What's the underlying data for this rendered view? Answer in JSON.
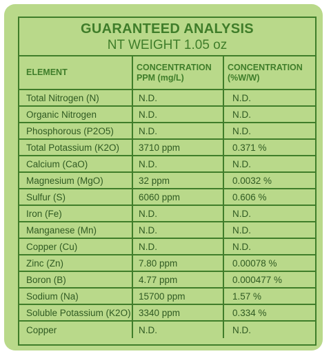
{
  "header": {
    "title": "GUARANTEED ANALYSIS",
    "subtitle": "NT WEIGHT 1.05 oz"
  },
  "columns": {
    "element": "ELEMENT",
    "ppm_line1": "CONCENTRATION",
    "ppm_line2": "PPM (mg/L)",
    "pct_line1": "CONCENTRATION",
    "pct_line2": "(%W/W)"
  },
  "rows": [
    {
      "element": "Total Nitrogen (N)",
      "ppm": "N.D.",
      "pct": "N.D."
    },
    {
      "element": "Organic Nitrogen",
      "ppm": "N.D.",
      "pct": "N.D."
    },
    {
      "element": "Phosphorous (P2O5)",
      "ppm": "N.D.",
      "pct": "N.D."
    },
    {
      "element": "Total Potassium (K2O)",
      "ppm": "3710 ppm",
      "pct": "0.371 %"
    },
    {
      "element": "Calcium (CaO)",
      "ppm": "N.D.",
      "pct": "N.D."
    },
    {
      "element": "Magnesium (MgO)",
      "ppm": "32 ppm",
      "pct": "0.0032 %"
    },
    {
      "element": "Sulfur (S)",
      "ppm": "6060 ppm",
      "pct": "0.606 %"
    },
    {
      "element": "Iron (Fe)",
      "ppm": "N.D.",
      "pct": "N.D."
    },
    {
      "element": "Manganese (Mn)",
      "ppm": "N.D.",
      "pct": "N.D."
    },
    {
      "element": "Copper (Cu)",
      "ppm": "N.D.",
      "pct": "N.D."
    },
    {
      "element": "Zinc (Zn)",
      "ppm": "7.80 ppm",
      "pct": "0.00078 %"
    },
    {
      "element": "Boron (B)",
      "ppm": "4.77 ppm",
      "pct": "0.000477 %"
    },
    {
      "element": "Sodium (Na)",
      "ppm": "15700 ppm",
      "pct": "1.57 %"
    },
    {
      "element": "Soluble Potassium (K2O)",
      "ppm": "3340 ppm",
      "pct": "0.334 %"
    },
    {
      "element": "Copper",
      "ppm": "N.D.",
      "pct": "N.D."
    }
  ],
  "colors": {
    "background": "#b9d98a",
    "border": "#3f7d2a",
    "text": "#2f5a22"
  }
}
